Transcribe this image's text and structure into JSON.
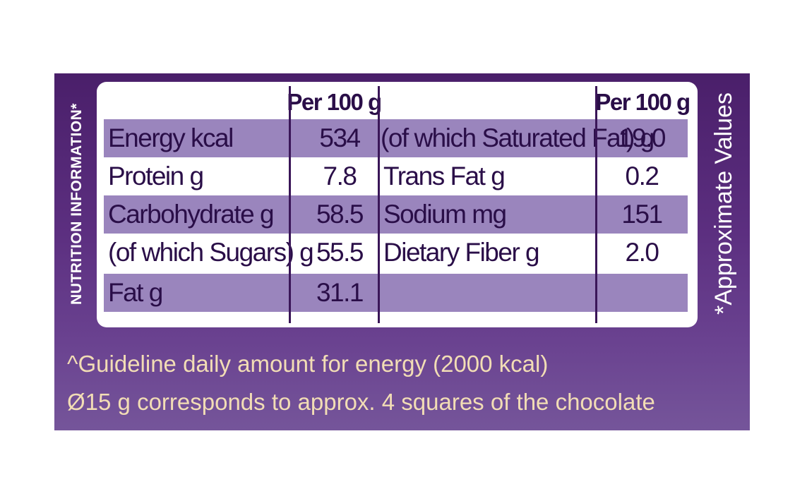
{
  "side_label_left": "NUTRITION INFORMATION*",
  "side_label_right": "*Approximate Values",
  "headers": {
    "left": "Per 100 g",
    "right": "Per 100 g"
  },
  "rows": [
    {
      "name_left": "Energy kcal",
      "value_left": "534",
      "name_right": "(of which Saturated Fat) g",
      "value_right": "19.0"
    },
    {
      "name_left": "Protein g",
      "value_left": "7.8",
      "name_right": "Trans Fat g",
      "value_right": "0.2"
    },
    {
      "name_left": "Carbohydrate g",
      "value_left": "58.5",
      "name_right": "Sodium mg",
      "value_right": "151"
    },
    {
      "name_left": "(of which Sugars) g",
      "value_left": "55.5",
      "name_right": "Dietary Fiber g",
      "value_right": "2.0"
    },
    {
      "name_left": "Fat g",
      "value_left": "31.1",
      "name_right": "",
      "value_right": ""
    }
  ],
  "footnotes": [
    "^Guideline daily amount for energy (2000 kcal)",
    "Ø15 g corresponds to approx. 4 squares of the chocolate"
  ],
  "colors": {
    "panel": "#5c2f80",
    "row_shade": "#9a85bd",
    "text_dark": "#2a0e48",
    "footnote_text": "#f2ddb5"
  }
}
